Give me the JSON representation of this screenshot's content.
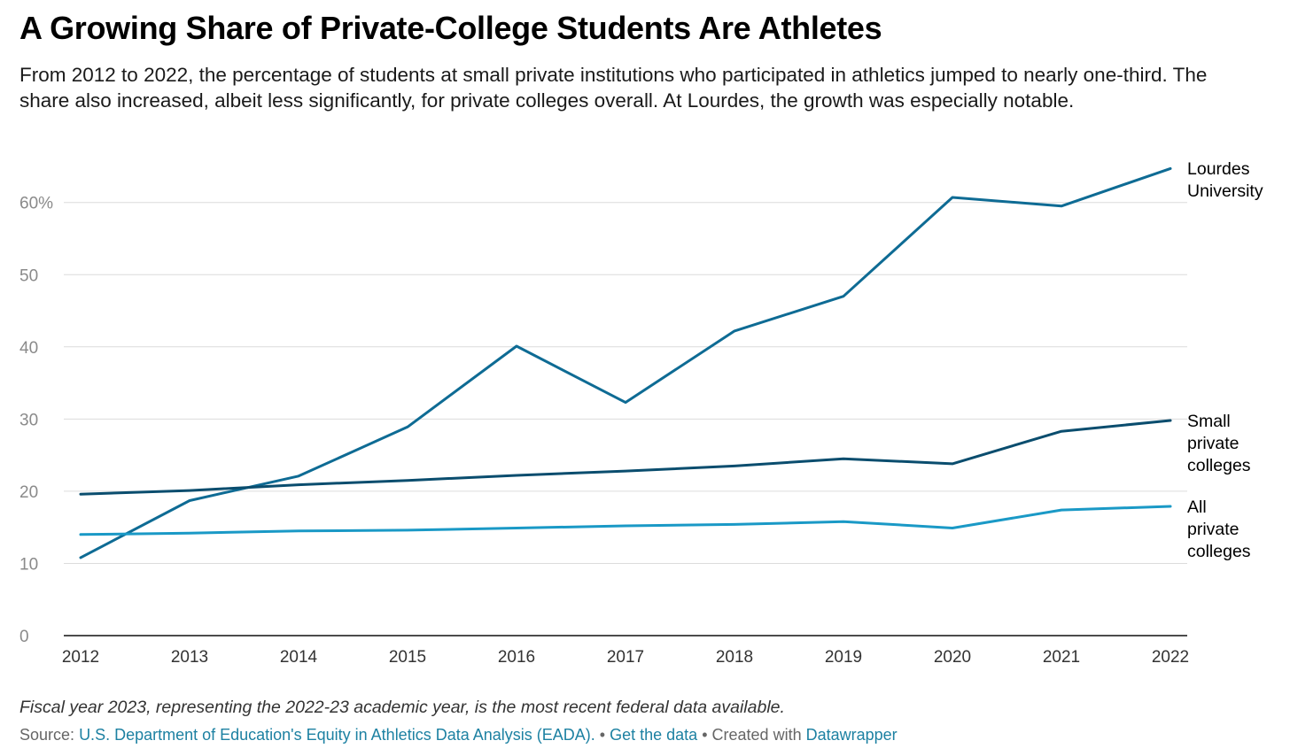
{
  "header": {
    "title": "A Growing Share of Private-College Students Are Athletes",
    "subtitle": "From 2012 to 2022, the percentage of students at small private institutions who participated in athletics jumped to nearly one-third. The share also increased, albeit less significantly, for private colleges overall. At Lourdes, the growth was especially notable."
  },
  "footer": {
    "note": "Fiscal year 2023, representing the 2022-23 academic year, is the most recent federal data available.",
    "source_prefix": "Source:",
    "source_link": "U.S. Department of Education's Equity in Athletics Data Analysis (EADA).",
    "separator": "•",
    "get_data": "Get the data",
    "created_with": "Created with",
    "datawrapper": "Datawrapper"
  },
  "chart_data": {
    "type": "line",
    "title": "A Growing Share of Private-College Students Are Athletes",
    "xlabel": "",
    "ylabel": "",
    "x": [
      2012,
      2013,
      2014,
      2015,
      2016,
      2017,
      2018,
      2019,
      2020,
      2021,
      2022
    ],
    "ylim": [
      0,
      65
    ],
    "yticks": [
      0,
      10,
      20,
      30,
      40,
      50,
      60
    ],
    "ytick_labels": [
      "0",
      "10",
      "20",
      "30",
      "40",
      "50",
      "60%"
    ],
    "grid": true,
    "legend": "direct labels at right end of lines",
    "series": [
      {
        "name": "Lourdes University",
        "label_lines": [
          "Lourdes",
          "University"
        ],
        "color": "#0e6b94",
        "values": [
          10.8,
          18.7,
          22.1,
          28.9,
          40.1,
          32.3,
          42.2,
          47.0,
          60.7,
          59.5,
          64.7
        ]
      },
      {
        "name": "Small private colleges",
        "label_lines": [
          "Small",
          "private",
          "colleges"
        ],
        "color": "#0a4d6e",
        "values": [
          19.6,
          20.1,
          20.9,
          21.5,
          22.2,
          22.8,
          23.5,
          24.5,
          23.8,
          28.3,
          29.8
        ]
      },
      {
        "name": "All private colleges",
        "label_lines": [
          "All",
          "private",
          "colleges"
        ],
        "color": "#1a99c6",
        "values": [
          14.0,
          14.2,
          14.5,
          14.6,
          14.9,
          15.2,
          15.4,
          15.8,
          14.9,
          17.4,
          17.9
        ]
      }
    ]
  }
}
